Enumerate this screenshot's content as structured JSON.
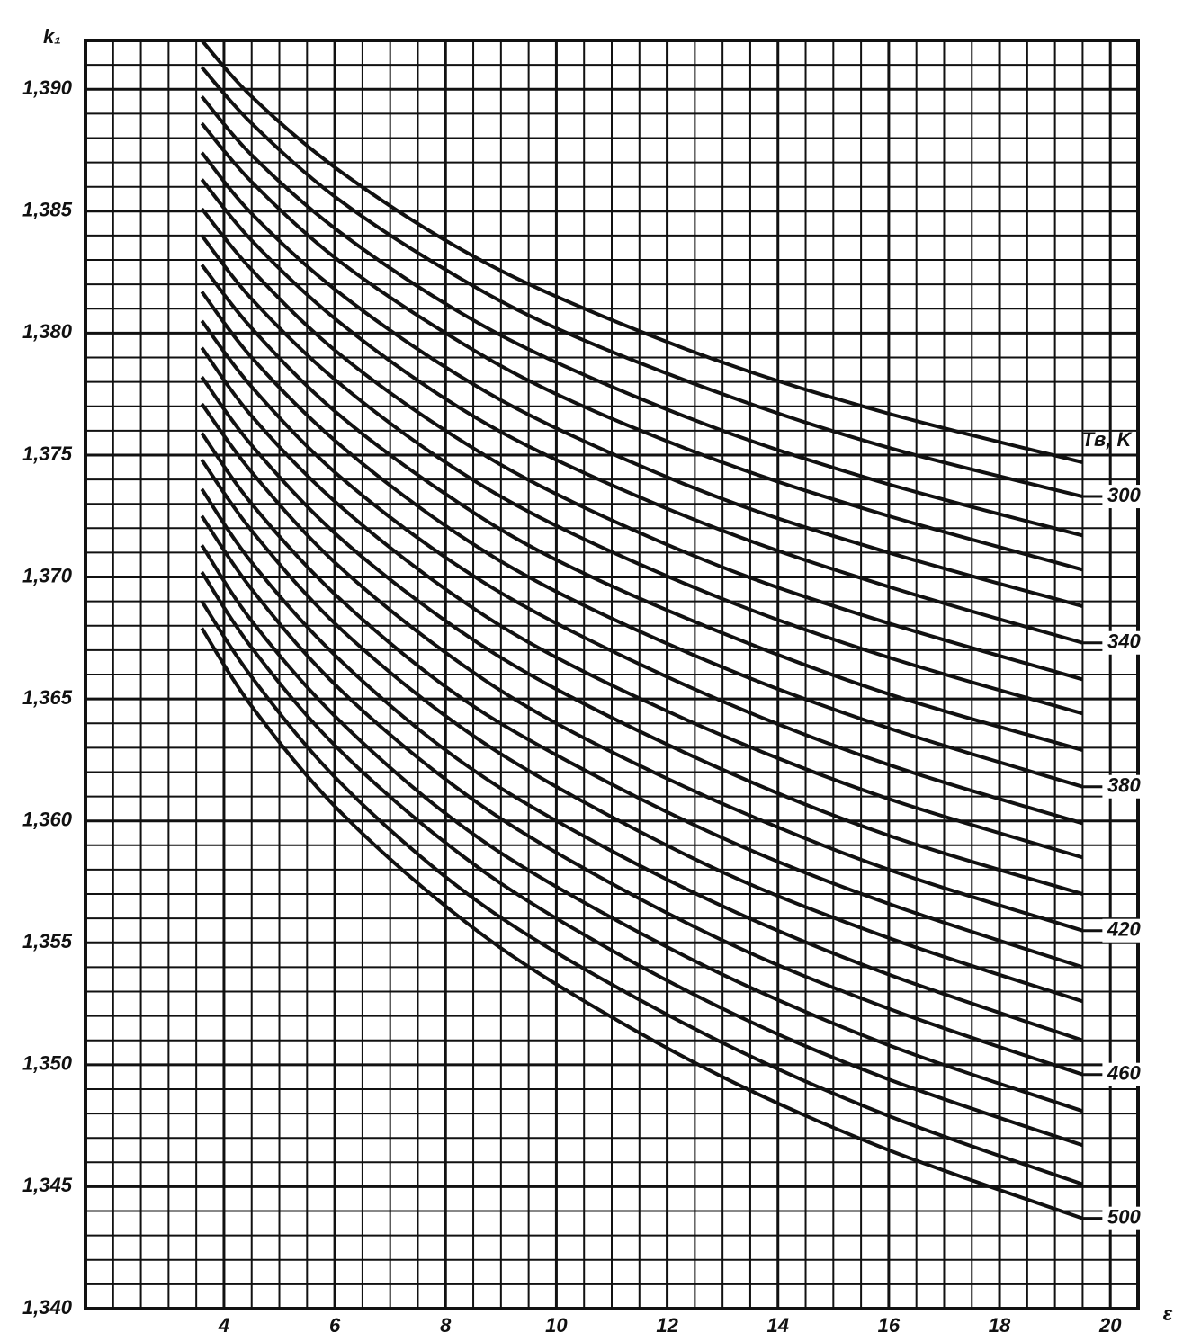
{
  "chart_data": {
    "type": "line",
    "y_label": "k₁",
    "x_label": "ε",
    "legend_title": "Tв, K",
    "xlim": [
      1.5,
      20.5
    ],
    "ylim": [
      1.34,
      1.392
    ],
    "xticks": [
      4,
      6,
      8,
      10,
      12,
      14,
      16,
      18,
      20
    ],
    "yticks": [
      {
        "value": 1.34,
        "label": "1,340"
      },
      {
        "value": 1.345,
        "label": "1,345"
      },
      {
        "value": 1.35,
        "label": "1,350"
      },
      {
        "value": 1.355,
        "label": "1,355"
      },
      {
        "value": 1.36,
        "label": "1,360"
      },
      {
        "value": 1.365,
        "label": "1,365"
      },
      {
        "value": 1.37,
        "label": "1,370"
      },
      {
        "value": 1.375,
        "label": "1,375"
      },
      {
        "value": 1.38,
        "label": "1,380"
      },
      {
        "value": 1.385,
        "label": "1,385"
      },
      {
        "value": 1.39,
        "label": "1,390"
      }
    ],
    "grid": true,
    "color": "#111111",
    "x": [
      3.6,
      4.5,
      6,
      8,
      10,
      13,
      16,
      19.5
    ],
    "series": [
      {
        "values": [
          1.392,
          1.3897,
          1.3868,
          1.3838,
          1.3815,
          1.3788,
          1.3767,
          1.3747
        ]
      },
      {
        "name": "300",
        "values": [
          1.3909,
          1.3886,
          1.3856,
          1.3826,
          1.3802,
          1.3775,
          1.3753,
          1.3733
        ]
      },
      {
        "values": [
          1.3897,
          1.3873,
          1.3843,
          1.3812,
          1.3788,
          1.376,
          1.3738,
          1.3717
        ]
      },
      {
        "values": [
          1.3886,
          1.3862,
          1.3831,
          1.38,
          1.3775,
          1.3747,
          1.3725,
          1.3703
        ]
      },
      {
        "values": [
          1.3874,
          1.3849,
          1.3818,
          1.3786,
          1.3761,
          1.3732,
          1.371,
          1.3688
        ]
      },
      {
        "name": "340",
        "values": [
          1.3863,
          1.3838,
          1.3806,
          1.3773,
          1.3748,
          1.3719,
          1.3696,
          1.3673
        ]
      },
      {
        "values": [
          1.3851,
          1.3826,
          1.3793,
          1.376,
          1.3734,
          1.3704,
          1.3681,
          1.3658
        ]
      },
      {
        "values": [
          1.384,
          1.3814,
          1.3781,
          1.3747,
          1.3721,
          1.3691,
          1.3667,
          1.3644
        ]
      },
      {
        "values": [
          1.3828,
          1.3802,
          1.3768,
          1.3734,
          1.3707,
          1.3677,
          1.3652,
          1.3629
        ]
      },
      {
        "name": "380",
        "values": [
          1.3817,
          1.379,
          1.3756,
          1.3721,
          1.3694,
          1.3663,
          1.3638,
          1.3614
        ]
      },
      {
        "values": [
          1.3805,
          1.3778,
          1.3743,
          1.3708,
          1.3681,
          1.3649,
          1.3623,
          1.3599
        ]
      },
      {
        "values": [
          1.3794,
          1.3766,
          1.3731,
          1.3695,
          1.3667,
          1.3635,
          1.3609,
          1.3585
        ]
      },
      {
        "values": [
          1.3782,
          1.3754,
          1.3718,
          1.3682,
          1.3654,
          1.3621,
          1.3594,
          1.357
        ]
      },
      {
        "name": "420",
        "values": [
          1.3771,
          1.3743,
          1.3706,
          1.3669,
          1.364,
          1.3607,
          1.358,
          1.3555
        ]
      },
      {
        "values": [
          1.3759,
          1.373,
          1.3693,
          1.3655,
          1.3627,
          1.3593,
          1.3566,
          1.354
        ]
      },
      {
        "values": [
          1.3748,
          1.3719,
          1.3681,
          1.3643,
          1.3614,
          1.3579,
          1.3552,
          1.3526
        ]
      },
      {
        "values": [
          1.3736,
          1.3706,
          1.3668,
          1.3629,
          1.36,
          1.3565,
          1.3537,
          1.351
        ]
      },
      {
        "name": "460",
        "values": [
          1.3725,
          1.3695,
          1.3656,
          1.3617,
          1.3587,
          1.3551,
          1.3523,
          1.3496
        ]
      },
      {
        "values": [
          1.3713,
          1.3682,
          1.3643,
          1.3603,
          1.3573,
          1.3537,
          1.3508,
          1.3481
        ]
      },
      {
        "values": [
          1.3702,
          1.3671,
          1.3631,
          1.3591,
          1.356,
          1.3523,
          1.3494,
          1.3467
        ]
      },
      {
        "values": [
          1.369,
          1.3659,
          1.3618,
          1.3577,
          1.3546,
          1.3509,
          1.3479,
          1.3451
        ]
      },
      {
        "name": "500",
        "values": [
          1.3679,
          1.3647,
          1.3606,
          1.3565,
          1.3533,
          1.3495,
          1.3465,
          1.3437
        ]
      }
    ]
  }
}
